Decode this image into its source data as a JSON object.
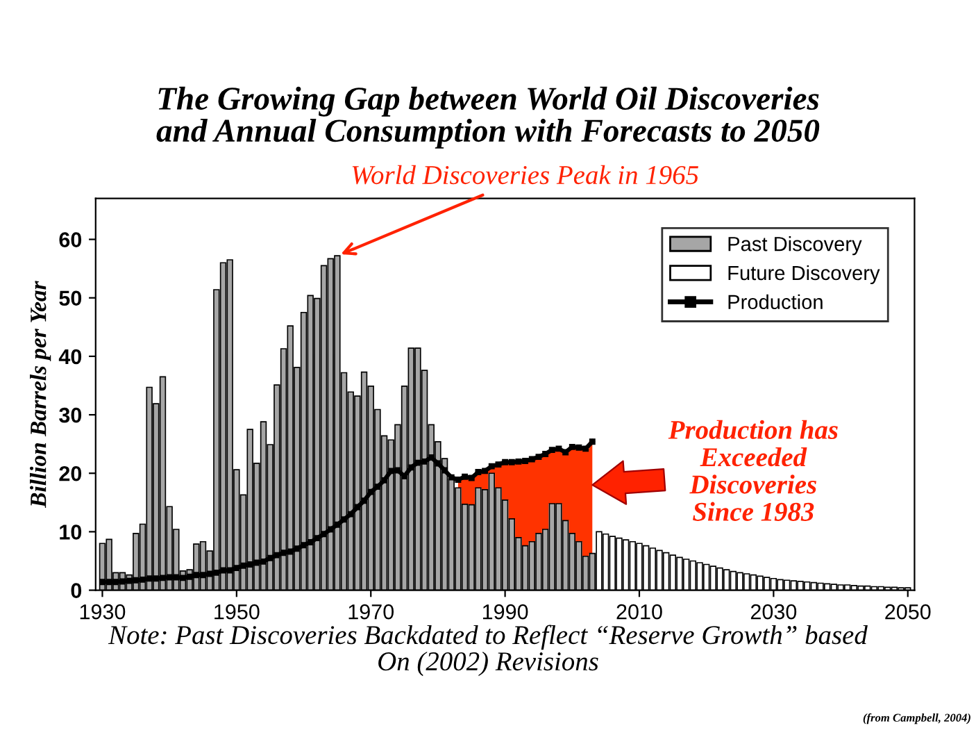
{
  "chart_data": {
    "type": "bar",
    "title": "The Growing Gap between World Oil Discoveries\nand Annual Consumption with Forecasts to 2050",
    "ylabel": "Billion Barrels per Year",
    "xlim": [
      1929,
      2051
    ],
    "xticks": [
      1930,
      1950,
      1970,
      1990,
      2010,
      2030,
      2050
    ],
    "ylim": [
      0,
      67
    ],
    "yticks": [
      0,
      10,
      20,
      30,
      40,
      50,
      60
    ],
    "grid": false,
    "legend": "top right",
    "series": [
      {
        "name": "Past Discovery",
        "type": "bar",
        "color": "#a6a6a6",
        "x": [
          1930,
          1931,
          1932,
          1933,
          1934,
          1935,
          1936,
          1937,
          1938,
          1939,
          1940,
          1941,
          1942,
          1943,
          1944,
          1945,
          1946,
          1947,
          1948,
          1949,
          1950,
          1951,
          1952,
          1953,
          1954,
          1955,
          1956,
          1957,
          1958,
          1959,
          1960,
          1961,
          1962,
          1963,
          1964,
          1965,
          1966,
          1967,
          1968,
          1969,
          1970,
          1971,
          1972,
          1973,
          1974,
          1975,
          1976,
          1977,
          1978,
          1979,
          1980,
          1981,
          1982,
          1983,
          1984,
          1985,
          1986,
          1987,
          1988,
          1989,
          1990,
          1991,
          1992,
          1993,
          1994,
          1995,
          1996,
          1997,
          1998,
          1999,
          2000,
          2001,
          2002,
          2003
        ],
        "values": [
          8.0,
          8.7,
          3.0,
          3.0,
          2.6,
          9.7,
          11.3,
          34.7,
          31.9,
          36.5,
          14.3,
          10.4,
          3.3,
          3.5,
          7.9,
          8.3,
          6.7,
          51.4,
          56.0,
          56.5,
          20.6,
          16.3,
          27.5,
          21.7,
          28.8,
          24.9,
          35.1,
          41.3,
          45.2,
          38.1,
          47.5,
          50.4,
          49.9,
          55.5,
          56.7,
          57.2,
          37.2,
          33.9,
          33.2,
          37.3,
          34.9,
          30.9,
          26.4,
          25.7,
          28.3,
          34.9,
          41.4,
          41.4,
          37.6,
          28.3,
          25.4,
          22.5,
          19.0,
          17.5,
          14.7,
          14.6,
          17.5,
          17.2,
          20.0,
          17.5,
          15.4,
          12.2,
          9.0,
          7.6,
          8.3,
          9.7,
          10.4,
          14.8,
          14.8,
          11.9,
          9.7,
          8.3,
          5.8,
          6.3
        ]
      },
      {
        "name": "Future Discovery",
        "type": "bar",
        "color": "#ffffff",
        "x": [
          2004,
          2005,
          2006,
          2007,
          2008,
          2009,
          2010,
          2011,
          2012,
          2013,
          2014,
          2015,
          2016,
          2017,
          2018,
          2019,
          2020,
          2021,
          2022,
          2023,
          2024,
          2025,
          2026,
          2027,
          2028,
          2029,
          2030,
          2031,
          2032,
          2033,
          2034,
          2035,
          2036,
          2037,
          2038,
          2039,
          2040,
          2041,
          2042,
          2043,
          2044,
          2045,
          2046,
          2047,
          2048,
          2049,
          2050
        ],
        "values": [
          10.0,
          9.6,
          9.2,
          8.9,
          8.6,
          8.3,
          8.0,
          7.6,
          7.2,
          6.8,
          6.4,
          6.0,
          5.6,
          5.3,
          5.0,
          4.7,
          4.4,
          4.1,
          3.8,
          3.5,
          3.2,
          3.0,
          2.8,
          2.6,
          2.4,
          2.2,
          2.0,
          1.8,
          1.7,
          1.6,
          1.5,
          1.4,
          1.3,
          1.2,
          1.1,
          1.0,
          0.9,
          0.9,
          0.8,
          0.7,
          0.7,
          0.6,
          0.6,
          0.5,
          0.5,
          0.4,
          0.4
        ]
      },
      {
        "type": "area",
        "color": "#ff3300",
        "x": [
          1983,
          1984,
          1985,
          1986,
          1987,
          1988,
          1989,
          1990,
          1991,
          1992,
          1993,
          1994,
          1995,
          1996,
          1997,
          1998,
          1999,
          2000,
          2001,
          2002,
          2003
        ],
        "values": [
          18.9,
          19.4,
          19.2,
          20.2,
          20.4,
          21.2,
          21.5,
          21.9,
          21.9,
          22.0,
          22.1,
          22.4,
          22.8,
          23.3,
          24.0,
          24.2,
          23.6,
          24.5,
          24.4,
          24.2,
          25.4
        ]
      },
      {
        "name": "Production",
        "type": "line",
        "color": "#000000",
        "marker": "square",
        "line_style": "solid",
        "x": [
          1930,
          1931,
          1932,
          1933,
          1934,
          1935,
          1936,
          1937,
          1938,
          1939,
          1940,
          1941,
          1942,
          1943,
          1944,
          1945,
          1946,
          1947,
          1948,
          1949,
          1950,
          1951,
          1952,
          1953,
          1954,
          1955,
          1956,
          1957,
          1958,
          1959,
          1960,
          1961,
          1962,
          1963,
          1964,
          1965,
          1966,
          1967,
          1968,
          1969,
          1970,
          1971,
          1972,
          1973,
          1974,
          1975,
          1976,
          1977,
          1978,
          1979,
          1980,
          1981,
          1982,
          1983,
          1984,
          1985,
          1986,
          1987,
          1988,
          1989,
          1990,
          1991,
          1992,
          1993,
          1994,
          1995,
          1996,
          1997,
          1998,
          1999,
          2000,
          2001,
          2002,
          2003
        ],
        "values": [
          1.4,
          1.4,
          1.4,
          1.5,
          1.6,
          1.7,
          1.8,
          2.0,
          2.0,
          2.1,
          2.2,
          2.2,
          2.1,
          2.3,
          2.6,
          2.6,
          2.8,
          3.0,
          3.4,
          3.4,
          3.8,
          4.2,
          4.4,
          4.7,
          4.9,
          5.5,
          6.0,
          6.4,
          6.6,
          7.1,
          7.7,
          8.2,
          8.9,
          9.6,
          10.4,
          11.2,
          12.1,
          13.0,
          14.2,
          15.3,
          16.8,
          17.7,
          18.8,
          20.4,
          20.5,
          19.5,
          21.0,
          21.8,
          22.0,
          22.7,
          21.7,
          20.5,
          19.3,
          18.9,
          19.4,
          19.2,
          20.2,
          20.4,
          21.2,
          21.5,
          21.9,
          21.9,
          22.0,
          22.1,
          22.4,
          22.8,
          23.3,
          24.0,
          24.2,
          23.6,
          24.5,
          24.4,
          24.2,
          25.4
        ]
      }
    ],
    "annotations": [
      {
        "text": "World Discoveries Peak in 1965",
        "x": 1965,
        "y": 57.2
      },
      {
        "text": "Production has\nExceeded\nDiscoveries\nSince 1983",
        "x": 2003,
        "y": 18
      },
      "Note: Past Discoveries Backdated to Reflect “Reserve Growth” based\nOn (2002) Revisions",
      "(from Campbell, 2004)"
    ]
  }
}
